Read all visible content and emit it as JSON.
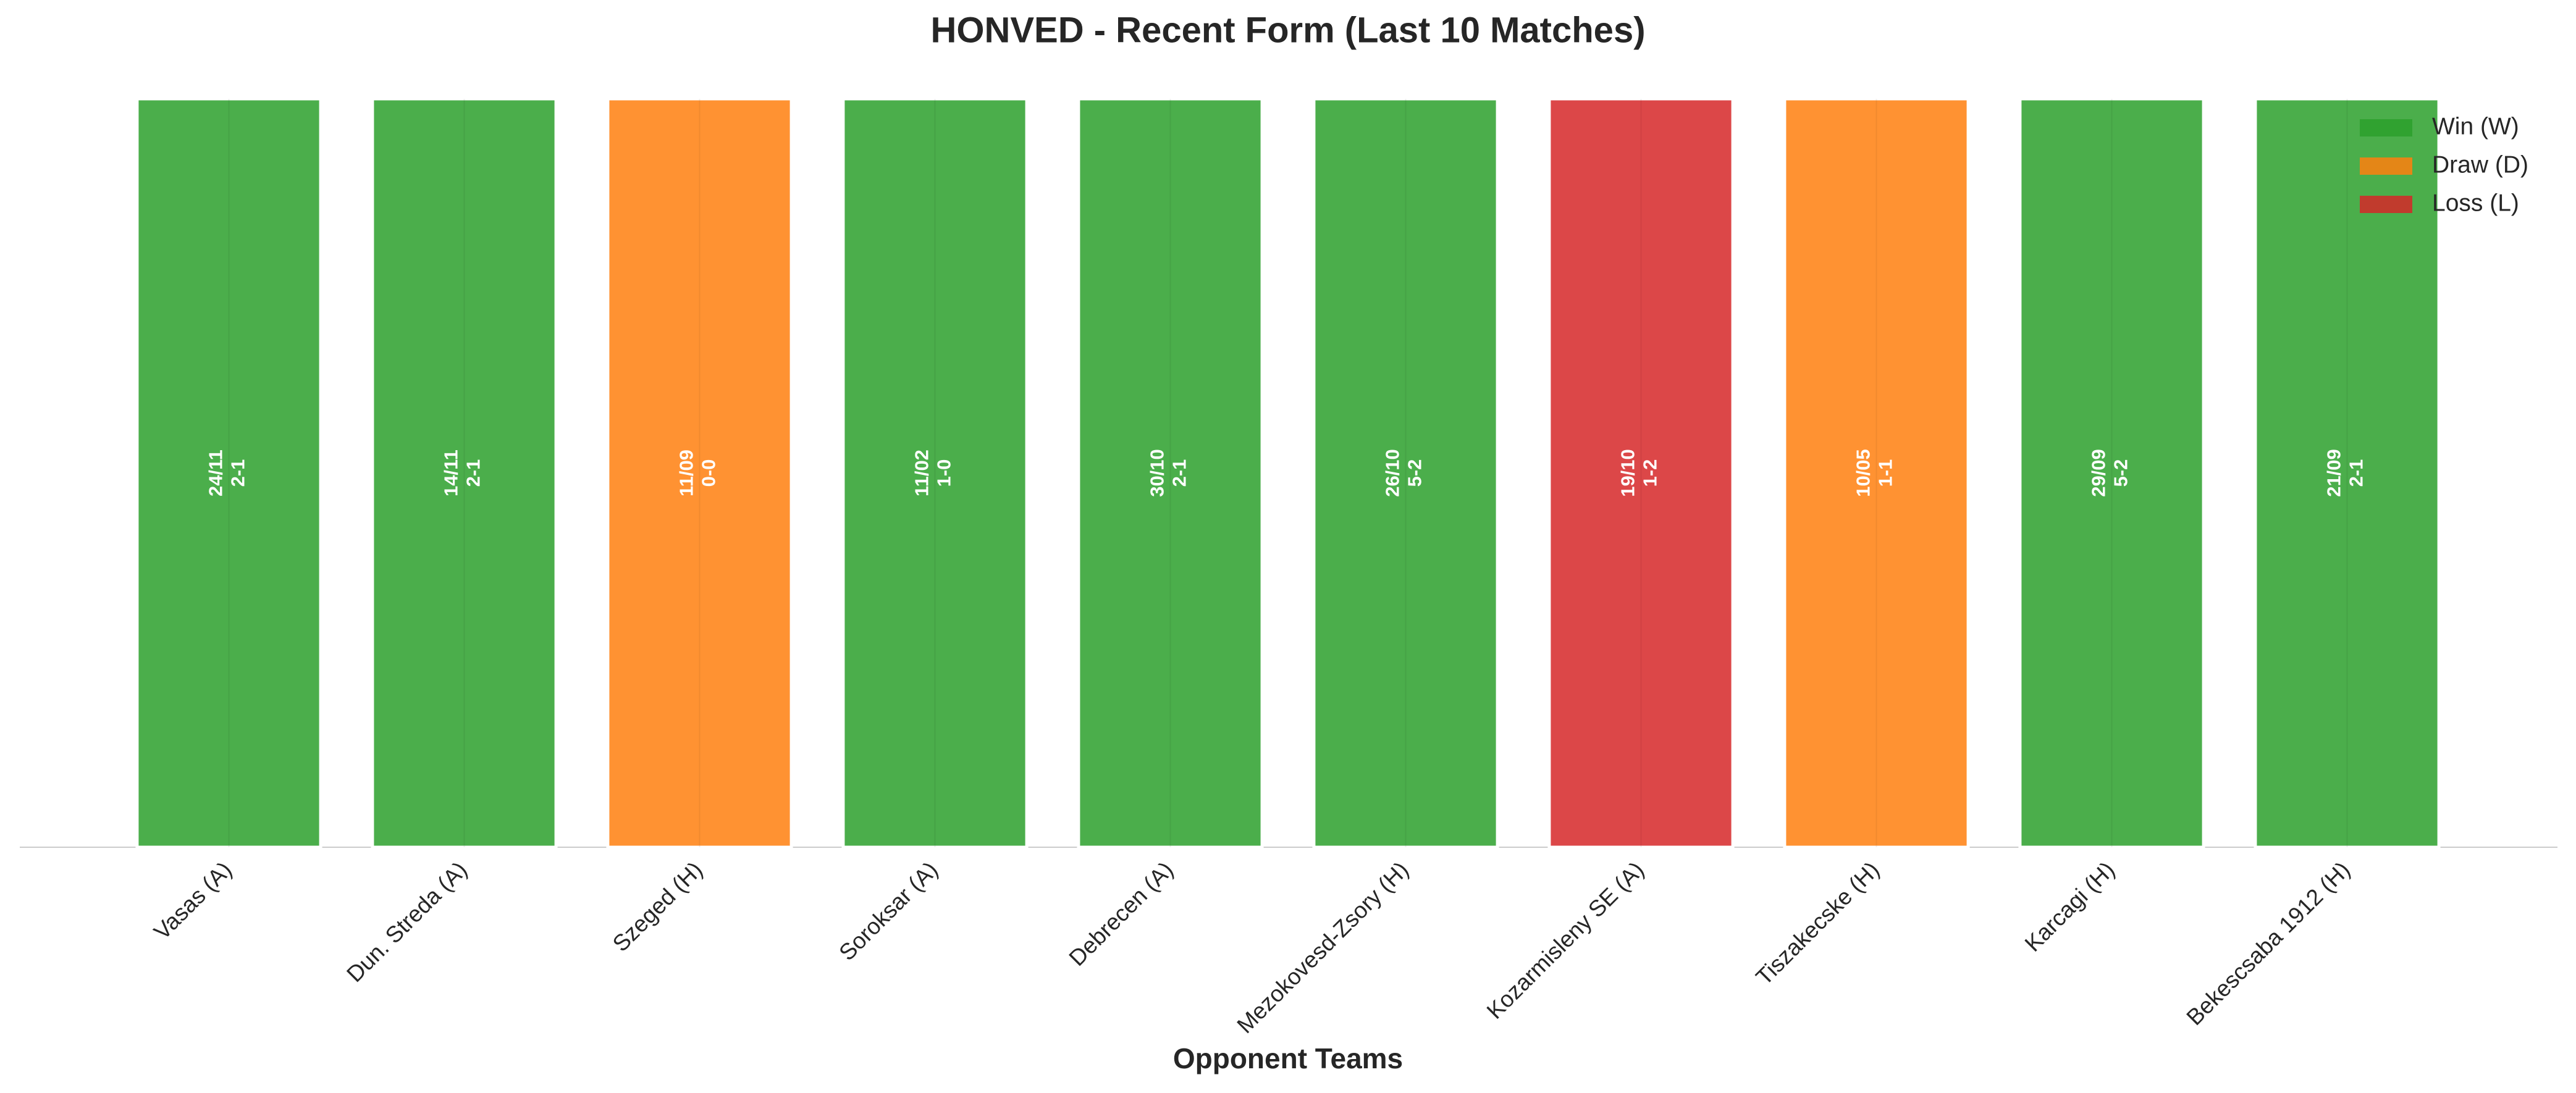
{
  "chart_data": {
    "type": "bar",
    "title": "HONVED - Recent Form (Last 10 Matches)",
    "x_label": "Opponent Teams",
    "categories": [
      "Vasas (A)",
      "Dun. Streda (A)",
      "Szeged (H)",
      "Soroksar (A)",
      "Debrecen (A)",
      "Mezokovesd-Zsory (H)",
      "Kozarmisleny SE (A)",
      "Tiszakecske (H)",
      "Karcagi (H)",
      "Bekescsaba 1912 (H)"
    ],
    "values": [
      1,
      1,
      1,
      1,
      1,
      1,
      1,
      1,
      1,
      1
    ],
    "dates": [
      "24/11",
      "14/11",
      "11/09",
      "11/02",
      "30/10",
      "26/10",
      "19/10",
      "10/05",
      "29/09",
      "21/09"
    ],
    "scores": [
      "2-1",
      "2-1",
      "0-0",
      "1-0",
      "2-1",
      "5-2",
      "1-2",
      "1-1",
      "5-2",
      "2-1"
    ],
    "colors": [
      "#2ca02c",
      "#2ca02c",
      "#ff7f0e",
      "#2ca02c",
      "#2ca02c",
      "#2ca02c",
      "#d62728",
      "#ff7f0e",
      "#2ca02c",
      "#2ca02c"
    ],
    "ylim": [
      0,
      1
    ],
    "grid": true,
    "legend_position": "upper right",
    "legend": [
      {
        "name": "Win (W)",
        "color": "#2ca02c"
      },
      {
        "name": "Draw (D)",
        "color": "#ff7f0e"
      },
      {
        "name": "Loss (L)",
        "color": "#d62728"
      }
    ]
  }
}
